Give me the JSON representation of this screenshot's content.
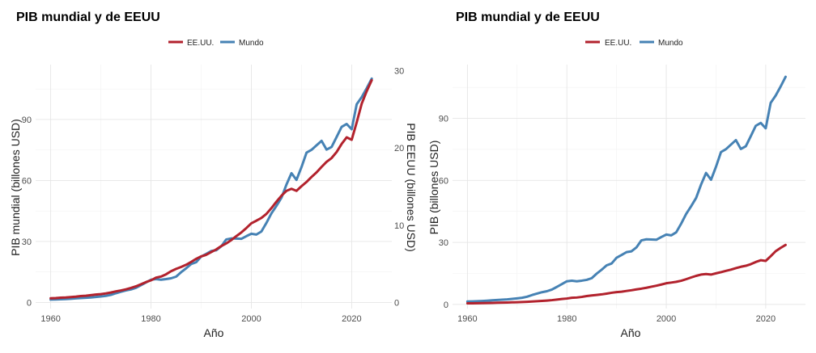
{
  "chart_data": [
    {
      "type": "line",
      "title": "PIB mundial y de EEUU",
      "xlabel": "Año",
      "ylabel": "PIB mundial (billones USD)",
      "y2label": "PIB EEUU (billones USD)",
      "xlim": [
        1957,
        2028
      ],
      "ylim": [
        -3,
        117
      ],
      "y2lim": [
        -0.8,
        30.8
      ],
      "x_ticks": [
        1960,
        1980,
        2000,
        2020
      ],
      "y_ticks": [
        0,
        30,
        60,
        90
      ],
      "y2_ticks": [
        0,
        10,
        20,
        30
      ],
      "grid": true,
      "legend_position": "top",
      "legend": [
        "EE.UU.",
        "Mundo"
      ],
      "x": [
        1960,
        1961,
        1962,
        1963,
        1964,
        1965,
        1966,
        1967,
        1968,
        1969,
        1970,
        1971,
        1972,
        1973,
        1974,
        1975,
        1976,
        1977,
        1978,
        1979,
        1980,
        1981,
        1982,
        1983,
        1984,
        1985,
        1986,
        1987,
        1988,
        1989,
        1990,
        1991,
        1992,
        1993,
        1994,
        1995,
        1996,
        1997,
        1998,
        1999,
        2000,
        2001,
        2002,
        2003,
        2004,
        2005,
        2006,
        2007,
        2008,
        2009,
        2010,
        2011,
        2012,
        2013,
        2014,
        2015,
        2016,
        2017,
        2018,
        2019,
        2020,
        2021,
        2022,
        2023,
        2024
      ],
      "series": [
        {
          "name": "EE.UU.",
          "axis": "right",
          "color": "#b2222d",
          "values": [
            0.54,
            0.56,
            0.61,
            0.64,
            0.69,
            0.74,
            0.82,
            0.86,
            0.94,
            1.02,
            1.07,
            1.16,
            1.28,
            1.43,
            1.55,
            1.69,
            1.87,
            2.08,
            2.35,
            2.63,
            2.86,
            3.21,
            3.35,
            3.64,
            4.04,
            4.34,
            4.59,
            4.87,
            5.24,
            5.64,
            5.96,
            6.16,
            6.52,
            6.86,
            7.29,
            7.64,
            8.07,
            8.58,
            9.06,
            9.63,
            10.25,
            10.58,
            10.94,
            11.46,
            12.21,
            13.04,
            13.82,
            14.45,
            14.71,
            14.45,
            15.05,
            15.6,
            16.25,
            16.84,
            17.55,
            18.21,
            18.7,
            19.48,
            20.53,
            21.38,
            21.06,
            23.32,
            25.74,
            27.36,
            28.78
          ]
        },
        {
          "name": "Mundo",
          "axis": "left",
          "color": "#4682b4",
          "values": [
            1.4,
            1.45,
            1.55,
            1.67,
            1.83,
            2.0,
            2.17,
            2.3,
            2.45,
            2.7,
            2.95,
            3.23,
            3.74,
            4.55,
            5.25,
            5.92,
            6.4,
            7.22,
            8.5,
            9.86,
            11.2,
            11.5,
            11.2,
            11.5,
            11.9,
            12.7,
            14.9,
            16.8,
            18.9,
            19.8,
            22.6,
            23.9,
            25.3,
            25.7,
            27.6,
            31.0,
            31.5,
            31.4,
            31.3,
            32.6,
            33.8,
            33.4,
            34.9,
            39.1,
            43.8,
            47.5,
            51.5,
            58.0,
            63.6,
            60.3,
            66.6,
            73.7,
            75.1,
            77.3,
            79.5,
            75.2,
            76.5,
            81.4,
            86.4,
            87.8,
            85.2,
            97.5,
            101.0,
            105.4,
            110.1
          ]
        }
      ]
    },
    {
      "type": "line",
      "title": "PIB mundial y de EEUU",
      "xlabel": "Año",
      "ylabel": "PIB (billones USD)",
      "xlim": [
        1957,
        2028
      ],
      "ylim": [
        -2,
        116
      ],
      "x_ticks": [
        1960,
        1980,
        2000,
        2020
      ],
      "y_ticks": [
        0,
        30,
        60,
        90
      ],
      "grid": true,
      "legend_position": "top",
      "legend": [
        "EE.UU.",
        "Mundo"
      ],
      "x": [
        1960,
        1961,
        1962,
        1963,
        1964,
        1965,
        1966,
        1967,
        1968,
        1969,
        1970,
        1971,
        1972,
        1973,
        1974,
        1975,
        1976,
        1977,
        1978,
        1979,
        1980,
        1981,
        1982,
        1983,
        1984,
        1985,
        1986,
        1987,
        1988,
        1989,
        1990,
        1991,
        1992,
        1993,
        1994,
        1995,
        1996,
        1997,
        1998,
        1999,
        2000,
        2001,
        2002,
        2003,
        2004,
        2005,
        2006,
        2007,
        2008,
        2009,
        2010,
        2011,
        2012,
        2013,
        2014,
        2015,
        2016,
        2017,
        2018,
        2019,
        2020,
        2021,
        2022,
        2023,
        2024
      ],
      "series": [
        {
          "name": "EE.UU.",
          "axis": "left",
          "color": "#b2222d",
          "values": [
            0.54,
            0.56,
            0.61,
            0.64,
            0.69,
            0.74,
            0.82,
            0.86,
            0.94,
            1.02,
            1.07,
            1.16,
            1.28,
            1.43,
            1.55,
            1.69,
            1.87,
            2.08,
            2.35,
            2.63,
            2.86,
            3.21,
            3.35,
            3.64,
            4.04,
            4.34,
            4.59,
            4.87,
            5.24,
            5.64,
            5.96,
            6.16,
            6.52,
            6.86,
            7.29,
            7.64,
            8.07,
            8.58,
            9.06,
            9.63,
            10.25,
            10.58,
            10.94,
            11.46,
            12.21,
            13.04,
            13.82,
            14.45,
            14.71,
            14.45,
            15.05,
            15.6,
            16.25,
            16.84,
            17.55,
            18.21,
            18.7,
            19.48,
            20.53,
            21.38,
            21.06,
            23.32,
            25.74,
            27.36,
            28.78
          ]
        },
        {
          "name": "Mundo",
          "axis": "left",
          "color": "#4682b4",
          "values": [
            1.4,
            1.45,
            1.55,
            1.67,
            1.83,
            2.0,
            2.17,
            2.3,
            2.45,
            2.7,
            2.95,
            3.23,
            3.74,
            4.55,
            5.25,
            5.92,
            6.4,
            7.22,
            8.5,
            9.86,
            11.2,
            11.5,
            11.2,
            11.5,
            11.9,
            12.7,
            14.9,
            16.8,
            18.9,
            19.8,
            22.6,
            23.9,
            25.3,
            25.7,
            27.6,
            31.0,
            31.5,
            31.4,
            31.3,
            32.6,
            33.8,
            33.4,
            34.9,
            39.1,
            43.8,
            47.5,
            51.5,
            58.0,
            63.6,
            60.3,
            66.6,
            73.7,
            75.1,
            77.3,
            79.5,
            75.2,
            76.5,
            81.4,
            86.4,
            87.8,
            85.2,
            97.5,
            101.0,
            105.4,
            110.1
          ]
        }
      ]
    }
  ]
}
